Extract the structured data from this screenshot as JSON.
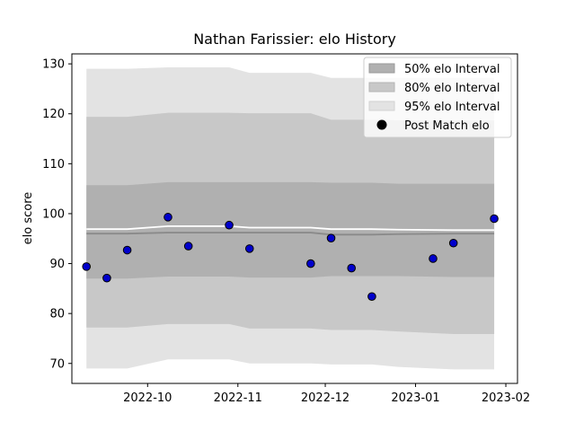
{
  "chart_data": {
    "type": "area",
    "title": "Nathan Farissier: elo History",
    "xlabel": "",
    "ylabel": "elo score",
    "xlim": [
      "2022-09-05",
      "2023-02-05"
    ],
    "ylim": [
      66,
      132
    ],
    "x_ticks": [
      {
        "date": "2022-10-01",
        "label": "2022-10"
      },
      {
        "date": "2022-11-01",
        "label": "2022-11"
      },
      {
        "date": "2022-12-01",
        "label": "2022-12"
      },
      {
        "date": "2023-01-01",
        "label": "2023-01"
      },
      {
        "date": "2023-02-01",
        "label": "2023-02"
      }
    ],
    "y_ticks": [
      70,
      80,
      90,
      100,
      110,
      120,
      130
    ],
    "legend_position": "top-right",
    "grid": false,
    "colors": {
      "band_50": "#b0b0b0",
      "band_80": "#c8c8c8",
      "band_95": "#e3e3e3",
      "median_line": "#8a8a8a",
      "mean_line": "#ffffff",
      "points": "#0000cc"
    },
    "bands": {
      "dates": [
        "2022-09-10",
        "2022-09-24",
        "2022-10-08",
        "2022-10-20",
        "2022-10-29",
        "2022-11-05",
        "2022-11-26",
        "2022-12-03",
        "2022-12-17",
        "2022-12-26",
        "2023-01-14",
        "2023-01-28"
      ],
      "p95_low": [
        69.0,
        69.0,
        70.8,
        70.8,
        70.8,
        70.0,
        70.0,
        69.8,
        69.8,
        69.3,
        68.8,
        68.8
      ],
      "p80_low": [
        77.2,
        77.2,
        77.9,
        77.9,
        77.9,
        77.0,
        77.0,
        76.7,
        76.7,
        76.4,
        75.9,
        75.9
      ],
      "p50_low": [
        87.0,
        87.0,
        87.4,
        87.4,
        87.4,
        87.2,
        87.2,
        87.5,
        87.5,
        87.5,
        87.3,
        87.3
      ],
      "median": [
        96.0,
        96.0,
        96.2,
        96.2,
        96.2,
        96.2,
        96.2,
        95.8,
        95.8,
        95.9,
        96.0,
        96.0
      ],
      "mean": [
        96.9,
        96.9,
        97.5,
        97.5,
        97.5,
        97.2,
        97.2,
        96.9,
        96.9,
        96.8,
        96.7,
        96.7
      ],
      "p50_high": [
        105.7,
        105.7,
        106.3,
        106.3,
        106.3,
        106.3,
        106.3,
        106.2,
        106.2,
        106.0,
        106.0,
        106.0
      ],
      "p80_high": [
        119.4,
        119.4,
        120.2,
        120.2,
        120.2,
        120.1,
        120.1,
        118.8,
        118.8,
        118.7,
        118.7,
        118.7
      ],
      "p95_high": [
        129.0,
        129.0,
        129.3,
        129.3,
        129.3,
        128.2,
        128.2,
        127.2,
        127.2,
        127.2,
        127.2,
        127.2
      ]
    },
    "points": [
      {
        "date": "2022-09-10",
        "elo": 89.4
      },
      {
        "date": "2022-09-17",
        "elo": 87.1
      },
      {
        "date": "2022-09-24",
        "elo": 92.7
      },
      {
        "date": "2022-10-08",
        "elo": 99.3
      },
      {
        "date": "2022-10-15",
        "elo": 93.5
      },
      {
        "date": "2022-10-29",
        "elo": 97.7
      },
      {
        "date": "2022-11-05",
        "elo": 93.0
      },
      {
        "date": "2022-11-26",
        "elo": 90.0
      },
      {
        "date": "2022-12-03",
        "elo": 95.1
      },
      {
        "date": "2022-12-10",
        "elo": 89.1
      },
      {
        "date": "2022-12-17",
        "elo": 83.4
      },
      {
        "date": "2023-01-07",
        "elo": 91.0
      },
      {
        "date": "2023-01-14",
        "elo": 94.1
      },
      {
        "date": "2023-01-28",
        "elo": 99.0
      }
    ],
    "legend": [
      {
        "key": "band_50",
        "label": "50% elo Interval"
      },
      {
        "key": "band_80",
        "label": "80% elo Interval"
      },
      {
        "key": "band_95",
        "label": "95% elo Interval"
      },
      {
        "key": "points",
        "label": "Post Match elo"
      }
    ]
  }
}
